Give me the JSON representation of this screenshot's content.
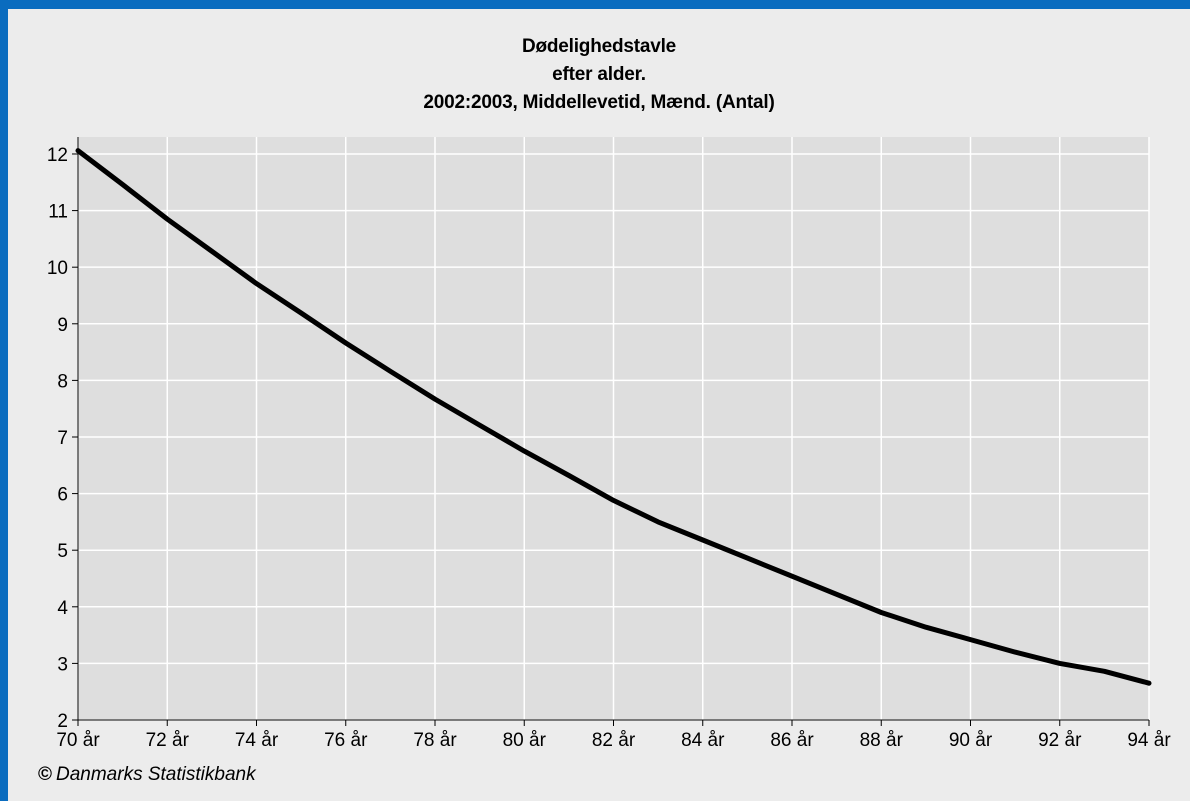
{
  "chart_data": {
    "type": "line",
    "title": [
      "Dødelighedstavle",
      "efter alder.",
      "2002:2003, Middellevetid, Mænd. (Antal)"
    ],
    "x": [
      70,
      71,
      72,
      73,
      74,
      75,
      76,
      77,
      78,
      79,
      80,
      81,
      82,
      83,
      84,
      85,
      86,
      87,
      88,
      89,
      90,
      91,
      92,
      93,
      94
    ],
    "xticks": [
      70,
      72,
      74,
      76,
      78,
      80,
      82,
      84,
      86,
      88,
      90,
      92,
      94
    ],
    "xtick_suffix": " år",
    "xlim": [
      70,
      94
    ],
    "ylim": [
      2,
      12.3
    ],
    "yticks": [
      2,
      3,
      4,
      5,
      6,
      7,
      8,
      9,
      10,
      11,
      12
    ],
    "grid": true,
    "series": [
      {
        "values": [
          12.06,
          11.46,
          10.85,
          10.28,
          9.71,
          9.19,
          8.66,
          8.16,
          7.67,
          7.21,
          6.75,
          6.32,
          5.88,
          5.5,
          5.18,
          4.86,
          4.54,
          4.22,
          3.9,
          3.64,
          3.42,
          3.2,
          3.0,
          2.86,
          2.65
        ],
        "color": "#000000"
      }
    ]
  },
  "source": "Danmarks Statistikbank",
  "colors": {
    "frame": "#0a6cbf",
    "background": "#ececec",
    "plot": "#dedede",
    "grid": "#ffffff",
    "line": "#000000"
  }
}
